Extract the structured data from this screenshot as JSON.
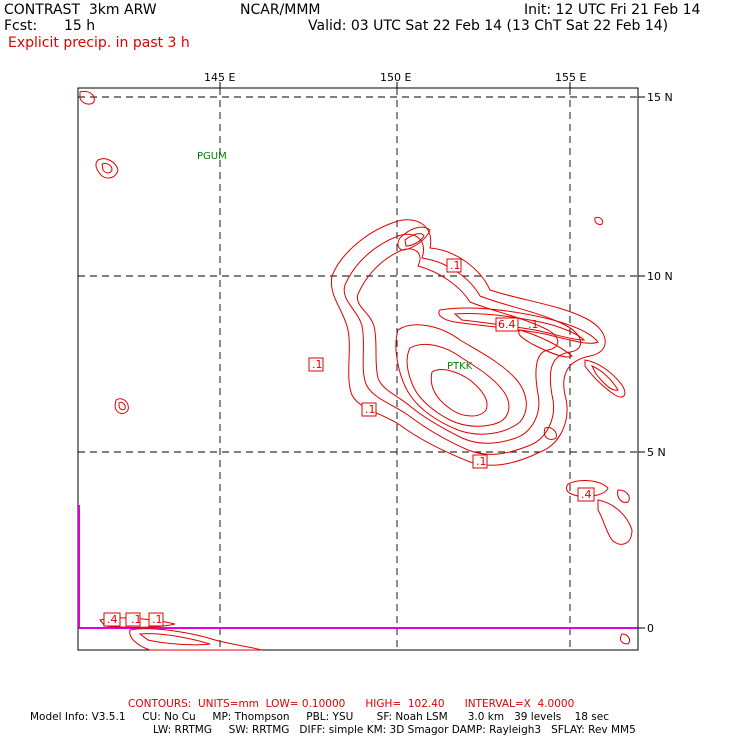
{
  "header": {
    "title": "CONTRAST  3km ARW",
    "center": "NCAR/MMM",
    "init": "Init: 12 UTC Fri 21 Feb 14",
    "fcst_label": "Fcst:",
    "fcst_value": "15 h",
    "valid": "Valid: 03 UTC Sat 22 Feb 14 (13 ChT Sat 22 Feb 14)",
    "field": "Explicit precip. in past 3 h"
  },
  "map": {
    "lon_labels": [
      "145 E",
      "150 E",
      "155 E"
    ],
    "lat_labels": [
      "15 N",
      "10 N",
      "5 N",
      "0"
    ],
    "stations": [
      "PGUM",
      "PTKK"
    ],
    "contour_labels": [
      ".1",
      ".1",
      ".1",
      ".1",
      ".1",
      "6.4",
      ".4",
      ".4",
      ".1",
      ".1"
    ],
    "colors": {
      "contour": "#e00000",
      "grid": "#000000",
      "station": "#008000",
      "marker": "#e000e0"
    }
  },
  "footer": {
    "contours": "CONTOURS:  UNITS=mm  LOW= 0.10000      HIGH=  102.40      INTERVAL=X  4.0000",
    "model_line1": "Model Info: V3.5.1     CU: No Cu     MP: Thompson     PBL: YSU       SF: Noah LSM      3.0 km   39 levels    18 sec",
    "model_line2": "LW: RRTMG     SW: RRTMG   DIFF: simple KM: 3D Smagor DAMP: Rayleigh3   SFLAY: Rev MM5"
  }
}
